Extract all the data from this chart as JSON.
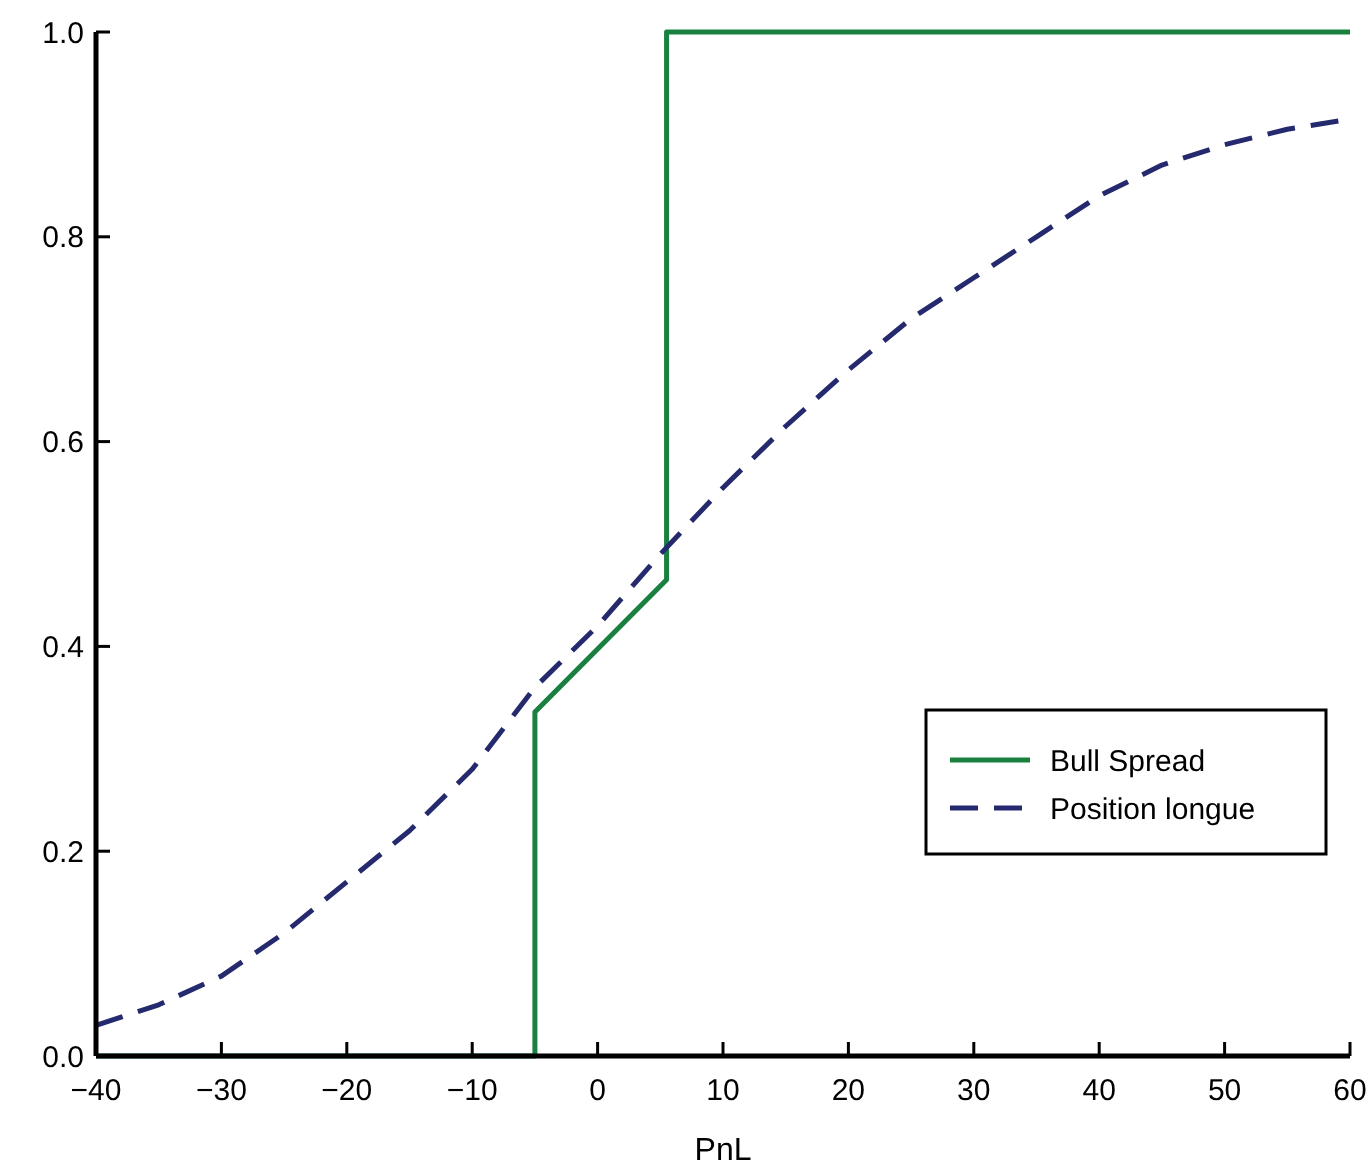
{
  "chart_data": {
    "type": "line",
    "xlabel": "PnL",
    "xlim": [
      -40,
      60
    ],
    "xticks": [
      -40,
      -30,
      -20,
      -10,
      0,
      10,
      20,
      30,
      40,
      50,
      60
    ],
    "ylim": [
      0,
      1
    ],
    "yticks": [
      {
        "value": 0,
        "label": "0.0"
      },
      {
        "value": 0.2,
        "label": "0.2"
      },
      {
        "value": 0.4,
        "label": "0.4"
      },
      {
        "value": 0.6,
        "label": "0.6"
      },
      {
        "value": 0.8,
        "label": "0.8"
      },
      {
        "value": 1,
        "label": "1.0"
      }
    ],
    "grid": false,
    "legend": "right",
    "series": [
      {
        "name": "Bull Spread",
        "color": "#1a8040",
        "line_style": "solid",
        "x": [
          -40,
          -5,
          -5,
          5.5,
          5.5,
          60
        ],
        "values": [
          0,
          0,
          0.336,
          0.465,
          1,
          1
        ]
      },
      {
        "name": "Position longue",
        "color": "#252a6e",
        "line_style": "dashed",
        "x": [
          -40,
          -35,
          -30,
          -25,
          -20,
          -15,
          -10,
          -5,
          0,
          5,
          10,
          15,
          20,
          25,
          30,
          35,
          40,
          45,
          50,
          55,
          60
        ],
        "values": [
          0.03,
          0.05,
          0.078,
          0.12,
          0.17,
          0.22,
          0.28,
          0.36,
          0.42,
          0.49,
          0.555,
          0.615,
          0.67,
          0.72,
          0.76,
          0.8,
          0.84,
          0.87,
          0.89,
          0.905,
          0.915
        ]
      }
    ]
  }
}
